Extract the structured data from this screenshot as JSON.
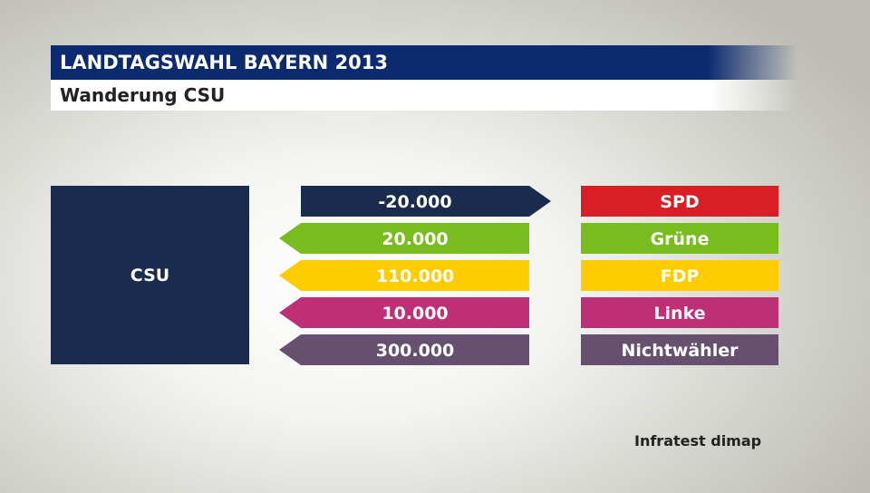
{
  "header": {
    "title": "LANDTAGSWAHL BAYERN 2013",
    "subtitle": "Wanderung CSU"
  },
  "party": "CSU",
  "source": "Infratest dimap",
  "colors": {
    "header_bg": "#0b2a6f",
    "party_box": "#1a2c4e"
  },
  "chart_data": {
    "type": "table",
    "party": "CSU",
    "flows": [
      {
        "value": -20000,
        "label": "-20.000",
        "target": "SPD",
        "direction": "outgoing",
        "color": "#1a2c4e",
        "target_color": "#d91f26"
      },
      {
        "value": 20000,
        "label": "20.000",
        "target": "Grüne",
        "direction": "incoming",
        "color": "#79bc1d",
        "target_color": "#79bc1d"
      },
      {
        "value": 110000,
        "label": "110.000",
        "target": "FDP",
        "direction": "incoming",
        "color": "#ffcc00",
        "target_color": "#ffcc00"
      },
      {
        "value": 10000,
        "label": "10.000",
        "target": "Linke",
        "direction": "incoming",
        "color": "#bf2f78",
        "target_color": "#bf2f78"
      },
      {
        "value": 300000,
        "label": "300.000",
        "target": "Nichtwähler",
        "direction": "incoming",
        "color": "#67506f",
        "target_color": "#67506f"
      }
    ]
  }
}
